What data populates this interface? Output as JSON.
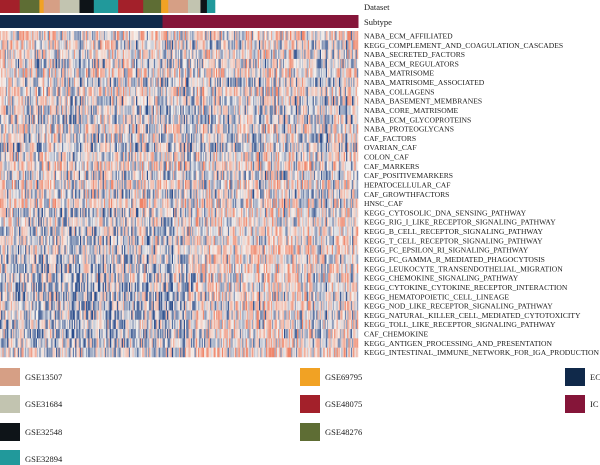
{
  "chart_data": {
    "type": "heatmap",
    "annotation_tracks": [
      {
        "name": "Dataset",
        "segments": [
          {
            "label": "GSE48075",
            "fraction": 0.055
          },
          {
            "label": "GSE48276",
            "fraction": 0.055
          },
          {
            "label": "GSE69795",
            "fraction": 0.012
          },
          {
            "label": "GSE13507",
            "fraction": 0.045
          },
          {
            "label": "GSE31684",
            "fraction": 0.055
          },
          {
            "label": "GSE32548",
            "fraction": 0.04
          },
          {
            "label": "GSE32894",
            "fraction": 0.068
          },
          {
            "label": "GSE48075",
            "fraction": 0.07
          },
          {
            "label": "GSE48276",
            "fraction": 0.05
          },
          {
            "label": "GSE69795",
            "fraction": 0.02
          },
          {
            "label": "GSE13507",
            "fraction": 0.055
          },
          {
            "label": "GSE31684",
            "fraction": 0.035
          },
          {
            "label": "GSE32548",
            "fraction": 0.018
          },
          {
            "label": "GSE32894",
            "fraction": 0.022
          }
        ]
      },
      {
        "name": "Subtype",
        "segments": [
          {
            "label": "EC",
            "fraction": 0.454
          },
          {
            "label": "IC",
            "fraction": 0.546
          }
        ]
      }
    ],
    "rows": [
      "NABA_ECM_AFFILIATED",
      "KEGG_COMPLEMENT_AND_COAGULATION_CASCADES",
      "NABA_SECRETED_FACTORS",
      "NABA_ECM_REGULATORS",
      "NABA_MATRISOME",
      "NABA_MATRISOME_ASSOCIATED",
      "NABA_COLLAGENS",
      "NABA_BASEMENT_MEMBRANES",
      "NABA_CORE_MATRISOME",
      "NABA_ECM_GLYCOPROTEINS",
      "NABA_PROTEOGLYCANS",
      "CAF_FACTORS",
      "OVARIAN_CAF",
      "COLON_CAF",
      "CAF_MARKERS",
      "CAF_POSITIVEMARKERS",
      "HEPATOCELLULAR_CAF",
      "CAF_GROWTHFACTORS",
      "HNSC_CAF",
      "KEGG_CYTOSOLIC_DNA_SENSING_PATHWAY",
      "KEGG_RIG_I_LIKE_RECEPTOR_SIGNALING_PATHWAY",
      "KEGG_B_CELL_RECEPTOR_SIGNALING_PATHWAY",
      "KEGG_T_CELL_RECEPTOR_SIGNALING_PATHWAY",
      "KEGG_FC_EPSILON_RI_SIGNALING_PATHWAY",
      "KEGG_FC_GAMMA_R_MEDIATED_PHAGOCYTOSIS",
      "KEGG_LEUKOCYTE_TRANSENDOTHELIAL_MIGRATION",
      "KEGG_CHEMOKINE_SIGNALING_PATHWAY",
      "KEGG_CYTOKINE_CYTOKINE_RECEPTOR_INTERACTION",
      "KEGG_HEMATOPOIETIC_CELL_LINEAGE",
      "KEGG_NOD_LIKE_RECEPTOR_SIGNALING_PATHWAY",
      "KEGG_NATURAL_KILLER_CELL_MEDIATED_CYTOTOXICITY",
      "KEGG_TOLL_LIKE_RECEPTOR_SIGNALING_PATHWAY",
      "CAF_CHEMOKINE",
      "KEGG_ANTIGEN_PROCESSING_AND_PRESENTATION",
      "KEGG_INTESTINAL_IMMUNE_NETWORK_FOR_IGA_PRODUCTION"
    ],
    "row_groups": [
      {
        "first_row": 0,
        "last_row": 18
      },
      {
        "first_row": 19,
        "last_row": 34
      }
    ],
    "column_count": 300,
    "color_scale": {
      "low": "#2b4d8c",
      "mid": "#f4f1ee",
      "high": "#f08468"
    },
    "legend": {
      "columns": [
        [
          {
            "label": "GSE13507",
            "color": "#d69f85"
          },
          {
            "label": "GSE31684",
            "color": "#c2c4b0"
          },
          {
            "label": "GSE32548",
            "color": "#0e1418"
          },
          {
            "label": "GSE32894",
            "color": "#21999b"
          }
        ],
        [
          {
            "label": "GSE69795",
            "color": "#f1a224"
          },
          {
            "label": "GSE48075",
            "color": "#a3202a"
          },
          {
            "label": "GSE48276",
            "color": "#5e6d34"
          }
        ],
        [
          {
            "label": "EC",
            "color": "#10294a"
          },
          {
            "label": "IC",
            "color": "#851539"
          }
        ]
      ]
    }
  }
}
